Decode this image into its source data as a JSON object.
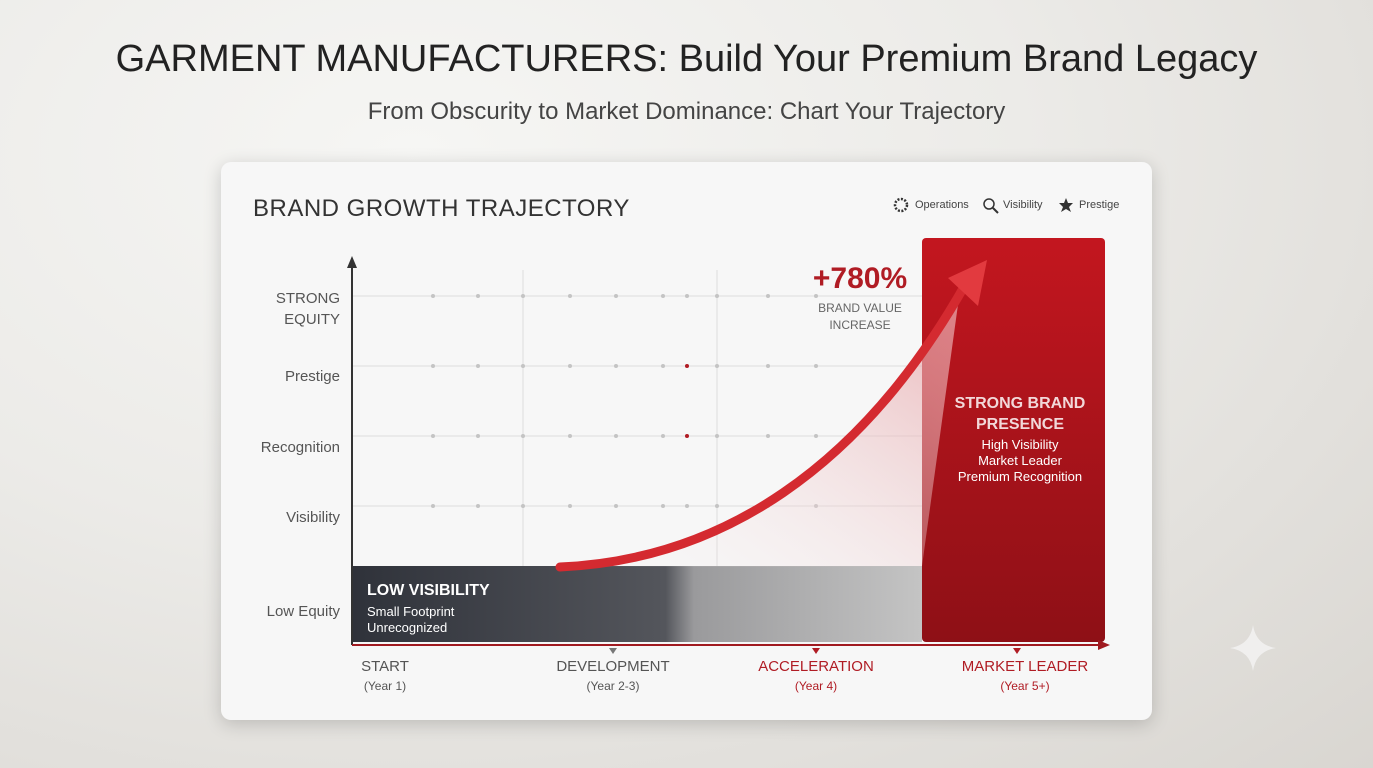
{
  "header": {
    "title": "GARMENT MANUFACTURERS: Build Your Premium Brand Legacy",
    "subtitle": "From Obscurity to Market Dominance: Chart Your Trajectory"
  },
  "card": {
    "title": "BRAND GROWTH TRAJECTORY",
    "legend": [
      "Operations",
      "Visibility",
      "Prestige"
    ],
    "y_levels": [
      "STRONG EQUITY",
      "Prestige",
      "Recognition",
      "Visibility",
      "Low Equity"
    ],
    "stages": [
      {
        "label": "START",
        "period": "(Year 1)"
      },
      {
        "label": "DEVELOPMENT",
        "period": "(Year 2-3)"
      },
      {
        "label": "ACCELERATION",
        "period": "(Year 4)"
      },
      {
        "label": "MARKET LEADER",
        "period": "(Year 5+)"
      }
    ],
    "low_box": {
      "title": "LOW VISIBILITY",
      "lines": [
        "Small Footprint",
        "Unrecognized"
      ]
    },
    "high_box": {
      "title": "STRONG BRAND PRESENCE",
      "lines": [
        "High Visibility",
        "Market Leader",
        "Premium Recognition"
      ]
    },
    "callout": {
      "value": "+780%",
      "label": "BRAND VALUE INCREASE"
    }
  }
}
